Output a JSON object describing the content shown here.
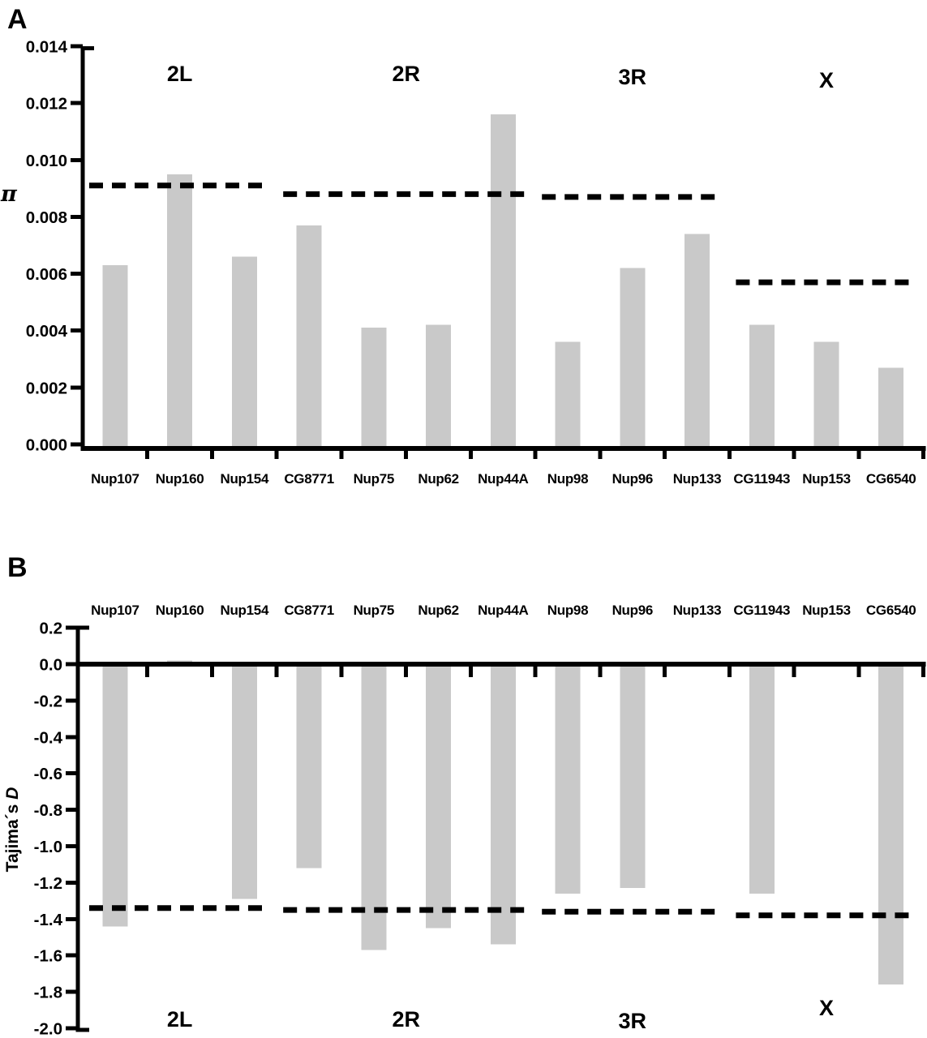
{
  "figure": {
    "background": "#ffffff",
    "bar_color": "#c9c9c9",
    "axis_color": "#000000",
    "dashed_line_color": "#000000"
  },
  "chart_data": [
    {
      "type": "bar",
      "panel_label": "A",
      "ylabel": "π",
      "categories": [
        "Nup107",
        "Nup160",
        "Nup154",
        "CG8771",
        "Nup75",
        "Nup62",
        "Nup44A",
        "Nup98",
        "Nup96",
        "Nup133",
        "CG11943",
        "Nup153",
        "CG6540"
      ],
      "values": [
        0.0063,
        0.0095,
        0.0066,
        0.0077,
        0.0041,
        0.0042,
        0.0116,
        0.0036,
        0.0062,
        0.0074,
        0.0042,
        0.0036,
        0.0027
      ],
      "ylim": [
        0,
        0.014
      ],
      "yticks": [
        "0.000",
        "0.002",
        "0.004",
        "0.006",
        "0.008",
        "0.010",
        "0.012",
        "0.014"
      ],
      "x_labels_position": "bottom",
      "group_labels_position": "top",
      "legend": "none",
      "grid": "off",
      "groups": [
        {
          "label": "2L",
          "first_gene": 0,
          "last_gene": 2,
          "dashed_line_value": 0.0091
        },
        {
          "label": "2R",
          "first_gene": 3,
          "last_gene": 6,
          "dashed_line_value": 0.0088
        },
        {
          "label": "3R",
          "first_gene": 7,
          "last_gene": 9,
          "dashed_line_value": 0.0087
        },
        {
          "label": "X",
          "first_gene": 10,
          "last_gene": 12,
          "dashed_line_value": 0.0057
        }
      ]
    },
    {
      "type": "bar",
      "panel_label": "B",
      "ylabel": "Tajima´s D",
      "categories": [
        "Nup107",
        "Nup160",
        "Nup154",
        "CG8771",
        "Nup75",
        "Nup62",
        "Nup44A",
        "Nup98",
        "Nup96",
        "Nup133",
        "CG11943",
        "Nup153",
        "CG6540"
      ],
      "values": [
        -1.44,
        0.02,
        -1.29,
        -1.12,
        -1.57,
        -1.45,
        -1.54,
        -1.26,
        -1.23,
        0,
        -1.26,
        0,
        -1.76
      ],
      "ylim": [
        -2.0,
        0.2
      ],
      "yticks": [
        "0.2",
        "0.0",
        "-0.2",
        "-0.4",
        "-0.6",
        "-0.8",
        "-1.0",
        "-1.2",
        "-1.4",
        "-1.6",
        "-1.8",
        "-2.0"
      ],
      "x_labels_position": "top",
      "group_labels_position": "bottom",
      "legend": "none",
      "grid": "off",
      "groups": [
        {
          "label": "2L",
          "first_gene": 0,
          "last_gene": 2,
          "dashed_line_value": -1.34
        },
        {
          "label": "2R",
          "first_gene": 3,
          "last_gene": 6,
          "dashed_line_value": -1.35
        },
        {
          "label": "3R",
          "first_gene": 7,
          "last_gene": 9,
          "dashed_line_value": -1.36
        },
        {
          "label": "X",
          "first_gene": 10,
          "last_gene": 12,
          "dashed_line_value": -1.38
        }
      ]
    }
  ]
}
